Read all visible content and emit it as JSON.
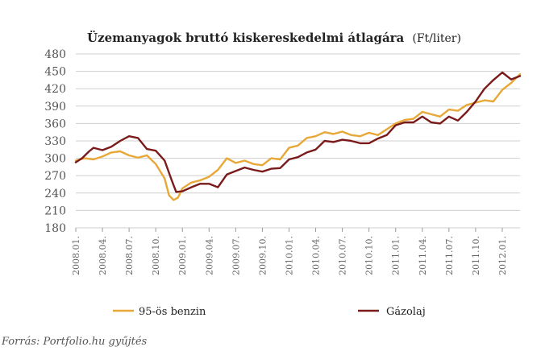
{
  "chart_data": {
    "type": "line",
    "title": "Üzemanyagok bruttó kiskereskedelmi átlagára",
    "title_unit": "(Ft/liter)",
    "ylim": [
      180,
      480
    ],
    "yticks": [
      180,
      210,
      240,
      270,
      300,
      330,
      360,
      390,
      420,
      450,
      480
    ],
    "grid": "horizontal",
    "x_tick_labels": [
      "2008.01.",
      "2008.04.",
      "2008.07.",
      "2008.10.",
      "2009.01.",
      "2009.04.",
      "2009.07.",
      "2009.10.",
      "2010.01.",
      "2010.04.",
      "2010.07.",
      "2010.10.",
      "2011.01.",
      "2011.04.",
      "2011.07.",
      "2011.10.",
      "2012.01."
    ],
    "x_range_months": [
      0,
      50
    ],
    "legend_position": "bottom",
    "series": [
      {
        "name": "95-ös benzin",
        "color": "#e8a838",
        "points": [
          [
            0,
            296
          ],
          [
            1,
            300
          ],
          [
            2,
            298
          ],
          [
            3,
            303
          ],
          [
            4,
            310
          ],
          [
            5,
            312
          ],
          [
            6,
            305
          ],
          [
            7,
            301
          ],
          [
            8,
            305
          ],
          [
            9,
            290
          ],
          [
            10,
            265
          ],
          [
            10.5,
            236
          ],
          [
            11,
            228
          ],
          [
            11.5,
            232
          ],
          [
            12,
            248
          ],
          [
            13,
            258
          ],
          [
            14,
            262
          ],
          [
            15,
            268
          ],
          [
            16,
            280
          ],
          [
            17,
            300
          ],
          [
            18,
            292
          ],
          [
            19,
            296
          ],
          [
            20,
            290
          ],
          [
            21,
            288
          ],
          [
            22,
            300
          ],
          [
            23,
            298
          ],
          [
            24,
            318
          ],
          [
            25,
            322
          ],
          [
            26,
            335
          ],
          [
            27,
            338
          ],
          [
            28,
            345
          ],
          [
            29,
            342
          ],
          [
            30,
            346
          ],
          [
            31,
            340
          ],
          [
            32,
            338
          ],
          [
            33,
            344
          ],
          [
            34,
            340
          ],
          [
            35,
            350
          ],
          [
            36,
            360
          ],
          [
            37,
            366
          ],
          [
            38,
            368
          ],
          [
            39,
            380
          ],
          [
            40,
            376
          ],
          [
            41,
            372
          ],
          [
            42,
            384
          ],
          [
            43,
            382
          ],
          [
            44,
            392
          ],
          [
            45,
            396
          ],
          [
            46,
            400
          ],
          [
            47,
            398
          ],
          [
            48,
            418
          ],
          [
            49,
            430
          ],
          [
            50,
            445
          ]
        ]
      },
      {
        "name": "Gázolaj",
        "color": "#7a1a1a",
        "points": [
          [
            0,
            293
          ],
          [
            0.7,
            300
          ],
          [
            1.5,
            312
          ],
          [
            2,
            318
          ],
          [
            3,
            314
          ],
          [
            4,
            320
          ],
          [
            5,
            330
          ],
          [
            6,
            338
          ],
          [
            7,
            335
          ],
          [
            8,
            316
          ],
          [
            9,
            313
          ],
          [
            10,
            296
          ],
          [
            10.8,
            262
          ],
          [
            11.3,
            242
          ],
          [
            12,
            243
          ],
          [
            13,
            250
          ],
          [
            14,
            256
          ],
          [
            15,
            256
          ],
          [
            16,
            250
          ],
          [
            17,
            272
          ],
          [
            18,
            278
          ],
          [
            19,
            284
          ],
          [
            20,
            280
          ],
          [
            21,
            277
          ],
          [
            22,
            282
          ],
          [
            23,
            283
          ],
          [
            24,
            298
          ],
          [
            25,
            302
          ],
          [
            26,
            310
          ],
          [
            27,
            315
          ],
          [
            28,
            330
          ],
          [
            29,
            328
          ],
          [
            30,
            332
          ],
          [
            31,
            330
          ],
          [
            32,
            326
          ],
          [
            33,
            326
          ],
          [
            34,
            334
          ],
          [
            35,
            340
          ],
          [
            36,
            357
          ],
          [
            37,
            362
          ],
          [
            38,
            362
          ],
          [
            39,
            372
          ],
          [
            40,
            362
          ],
          [
            41,
            360
          ],
          [
            42,
            372
          ],
          [
            43,
            365
          ],
          [
            44,
            380
          ],
          [
            45,
            398
          ],
          [
            46,
            420
          ],
          [
            47,
            435
          ],
          [
            48,
            448
          ],
          [
            49,
            436
          ],
          [
            50,
            442
          ]
        ]
      }
    ]
  },
  "source_text": "Forrás: Portfolio.hu gyűjtés"
}
